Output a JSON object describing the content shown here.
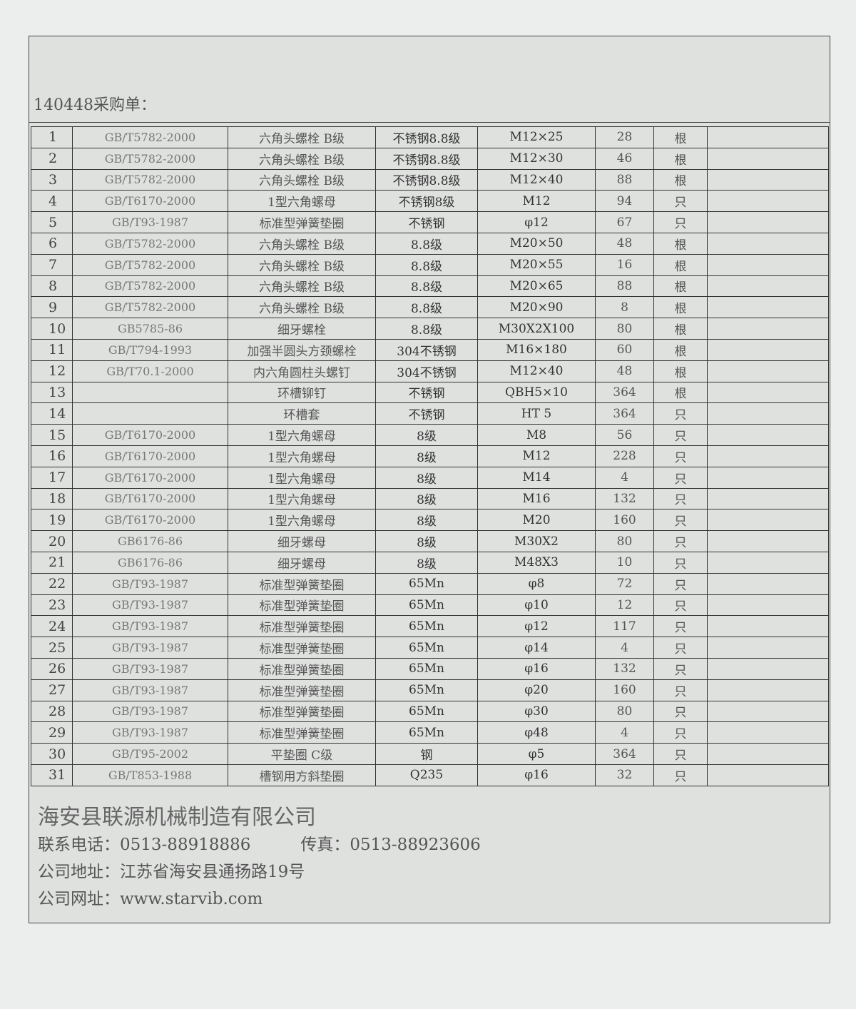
{
  "title": "140448采购单：",
  "rows": [
    [
      "1",
      "GB/T5782-2000",
      "六角头螺栓 B级",
      "不锈钢8.8级",
      "M12×25",
      "28",
      "根"
    ],
    [
      "2",
      "GB/T5782-2000",
      "六角头螺栓 B级",
      "不锈钢8.8级",
      "M12×30",
      "46",
      "根"
    ],
    [
      "3",
      "GB/T5782-2000",
      "六角头螺栓 B级",
      "不锈钢8.8级",
      "M12×40",
      "88",
      "根"
    ],
    [
      "4",
      "GB/T6170-2000",
      "1型六角螺母",
      "不锈钢8级",
      "M12",
      "94",
      "只"
    ],
    [
      "5",
      "GB/T93-1987",
      "标准型弹簧垫圈",
      "不锈钢",
      "φ12",
      "67",
      "只"
    ],
    [
      "6",
      "GB/T5782-2000",
      "六角头螺栓 B级",
      "8.8级",
      "M20×50",
      "48",
      "根"
    ],
    [
      "7",
      "GB/T5782-2000",
      "六角头螺栓 B级",
      "8.8级",
      "M20×55",
      "16",
      "根"
    ],
    [
      "8",
      "GB/T5782-2000",
      "六角头螺栓 B级",
      "8.8级",
      "M20×65",
      "88",
      "根"
    ],
    [
      "9",
      "GB/T5782-2000",
      "六角头螺栓 B级",
      "8.8级",
      "M20×90",
      "8",
      "根"
    ],
    [
      "10",
      "GB5785-86",
      "细牙螺栓",
      "8.8级",
      "M30X2X100",
      "80",
      "根"
    ],
    [
      "11",
      "GB/T794-1993",
      "加强半圆头方颈螺栓",
      "304不锈钢",
      "M16×180",
      "60",
      "根"
    ],
    [
      "12",
      "GB/T70.1-2000",
      "内六角圆柱头螺钉",
      "304不锈钢",
      "M12×40",
      "48",
      "根"
    ],
    [
      "13",
      "",
      "环槽铆钉",
      "不锈钢",
      "QBH5×10",
      "364",
      "根"
    ],
    [
      "14",
      "",
      "环槽套",
      "不锈钢",
      "HT 5",
      "364",
      "只"
    ],
    [
      "15",
      "GB/T6170-2000",
      "1型六角螺母",
      "8级",
      "M8",
      "56",
      "只"
    ],
    [
      "16",
      "GB/T6170-2000",
      "1型六角螺母",
      "8级",
      "M12",
      "228",
      "只"
    ],
    [
      "17",
      "GB/T6170-2000",
      "1型六角螺母",
      "8级",
      "M14",
      "4",
      "只"
    ],
    [
      "18",
      "GB/T6170-2000",
      "1型六角螺母",
      "8级",
      "M16",
      "132",
      "只"
    ],
    [
      "19",
      "GB/T6170-2000",
      "1型六角螺母",
      "8级",
      "M20",
      "160",
      "只"
    ],
    [
      "20",
      "GB6176-86",
      "细牙螺母",
      "8级",
      "M30X2",
      "80",
      "只"
    ],
    [
      "21",
      "GB6176-86",
      "细牙螺母",
      "8级",
      "M48X3",
      "10",
      "只"
    ],
    [
      "22",
      "GB/T93-1987",
      "标准型弹簧垫圈",
      "65Mn",
      "φ8",
      "72",
      "只"
    ],
    [
      "23",
      "GB/T93-1987",
      "标准型弹簧垫圈",
      "65Mn",
      "φ10",
      "12",
      "只"
    ],
    [
      "24",
      "GB/T93-1987",
      "标准型弹簧垫圈",
      "65Mn",
      "φ12",
      "117",
      "只"
    ],
    [
      "25",
      "GB/T93-1987",
      "标准型弹簧垫圈",
      "65Mn",
      "φ14",
      "4",
      "只"
    ],
    [
      "26",
      "GB/T93-1987",
      "标准型弹簧垫圈",
      "65Mn",
      "φ16",
      "132",
      "只"
    ],
    [
      "27",
      "GB/T93-1987",
      "标准型弹簧垫圈",
      "65Mn",
      "φ20",
      "160",
      "只"
    ],
    [
      "28",
      "GB/T93-1987",
      "标准型弹簧垫圈",
      "65Mn",
      "φ30",
      "80",
      "只"
    ],
    [
      "29",
      "GB/T93-1987",
      "标准型弹簧垫圈",
      "65Mn",
      "φ48",
      "4",
      "只"
    ],
    [
      "30",
      "GB/T95-2002",
      "平垫圈 C级",
      "钢",
      "φ5",
      "364",
      "只"
    ],
    [
      "31",
      "GB/T853-1988",
      "槽钢用方斜垫圈",
      "Q235",
      "φ16",
      "32",
      "只"
    ]
  ],
  "footer": {
    "company": "海安县联源机械制造有限公司",
    "phone": "联系电话：0513-88918886",
    "fax": "传真：0513-88923606",
    "address": "公司地址：江苏省海安县通扬路19号",
    "website": "公司网址：www.starvib.com"
  }
}
